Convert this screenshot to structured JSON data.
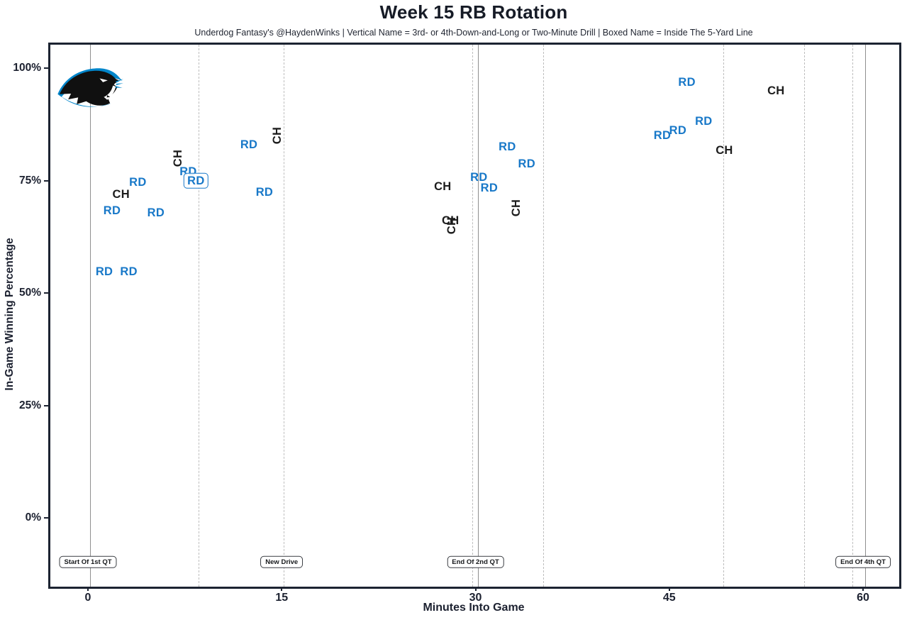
{
  "header": {
    "title": "Week 15 RB Rotation",
    "subtitle": "Underdog Fantasy's @HaydenWinks | Vertical Name = 3rd- or 4th-Down-and-Long or Two-Minute Drill | Boxed Name = Inside The 5-Yard Line"
  },
  "colors": {
    "rd_blue": "#1878c8",
    "ch_black": "#1c1c1c",
    "panther_blue": "#0085CA",
    "solid_quarter_line": "#8f8f8f",
    "dashed_drive_line": "#bdbdbd",
    "plot_border": "#1c2331"
  },
  "logo_name": "carolina-panthers-logo",
  "chart_data": {
    "type": "scatter",
    "title": "Week 15 RB Rotation",
    "subtitle": "Underdog Fantasy's @HaydenWinks | Vertical Name = 3rd- or 4th-Down-and-Long or Two-Minute Drill | Boxed Name = Inside The 5-Yard Line",
    "xlabel": "Minutes Into Game",
    "ylabel": "In-Game Winning Percentage",
    "x_ticks": [
      0,
      15,
      30,
      45,
      60
    ],
    "y_ticks": [
      0,
      25,
      50,
      75,
      100
    ],
    "y_tick_suffix": "%",
    "xlim": [
      -3.1,
      62.8
    ],
    "ylim": [
      -15.3,
      105.7
    ],
    "grid": "vertical-lines-only",
    "legend": "none",
    "marker_style": "text-initials",
    "annotation_rules": {
      "vertical_label": "3rd- or 4th-Down-and-Long or Two-Minute Drill",
      "boxed_label": "Inside The 5-Yard Line"
    },
    "quarter_lines": [
      {
        "min": 0,
        "label": "Start Of 1st QT"
      },
      {
        "min": 30,
        "label": "End Of 2nd QT"
      },
      {
        "min": 60,
        "label": "End Of 4th QT"
      }
    ],
    "new_drive_lines": {
      "label": "New Drive",
      "label_at_min": 15.0,
      "mins": [
        8.4,
        15.0,
        29.6,
        35.1,
        49.0,
        55.3,
        59.0
      ]
    },
    "points": [
      {
        "player": "RD",
        "min": 1.1,
        "pct": 55.2,
        "vertical": false,
        "boxed": false
      },
      {
        "player": "RD",
        "min": 3.0,
        "pct": 55.2,
        "vertical": false,
        "boxed": false
      },
      {
        "player": "RD",
        "min": 1.7,
        "pct": 68.8,
        "vertical": false,
        "boxed": false
      },
      {
        "player": "CH",
        "min": 2.4,
        "pct": 72.4,
        "vertical": false,
        "boxed": false
      },
      {
        "player": "RD",
        "min": 3.7,
        "pct": 75.1,
        "vertical": false,
        "boxed": false
      },
      {
        "player": "RD",
        "min": 5.1,
        "pct": 68.3,
        "vertical": false,
        "boxed": false
      },
      {
        "player": "CH",
        "min": 6.8,
        "pct": 80.4,
        "vertical": true,
        "boxed": false
      },
      {
        "player": "RD",
        "min": 7.6,
        "pct": 77.4,
        "vertical": false,
        "boxed": false
      },
      {
        "player": "RD",
        "min": 8.2,
        "pct": 75.4,
        "vertical": false,
        "boxed": true
      },
      {
        "player": "RD",
        "min": 12.3,
        "pct": 83.4,
        "vertical": false,
        "boxed": false
      },
      {
        "player": "CH",
        "min": 14.5,
        "pct": 85.5,
        "vertical": true,
        "boxed": false
      },
      {
        "player": "RD",
        "min": 13.5,
        "pct": 72.9,
        "vertical": false,
        "boxed": false
      },
      {
        "player": "CH",
        "min": 27.3,
        "pct": 74.1,
        "vertical": false,
        "boxed": false
      },
      {
        "player": "CH",
        "min": 27.9,
        "pct": 66.6,
        "vertical": false,
        "boxed": false
      },
      {
        "player": "CH",
        "min": 28.0,
        "pct": 65.5,
        "vertical": true,
        "boxed": false
      },
      {
        "player": "RD",
        "min": 30.1,
        "pct": 76.2,
        "vertical": false,
        "boxed": false
      },
      {
        "player": "RD",
        "min": 30.9,
        "pct": 73.8,
        "vertical": false,
        "boxed": false
      },
      {
        "player": "RD",
        "min": 32.3,
        "pct": 83.0,
        "vertical": false,
        "boxed": false
      },
      {
        "player": "RD",
        "min": 33.8,
        "pct": 79.2,
        "vertical": false,
        "boxed": false
      },
      {
        "player": "CH",
        "min": 33.0,
        "pct": 69.4,
        "vertical": true,
        "boxed": false
      },
      {
        "player": "RD",
        "min": 44.3,
        "pct": 85.5,
        "vertical": false,
        "boxed": false
      },
      {
        "player": "RD",
        "min": 45.5,
        "pct": 86.6,
        "vertical": false,
        "boxed": false
      },
      {
        "player": "RD",
        "min": 46.2,
        "pct": 97.3,
        "vertical": false,
        "boxed": false
      },
      {
        "player": "RD",
        "min": 47.5,
        "pct": 88.6,
        "vertical": false,
        "boxed": false
      },
      {
        "player": "CH",
        "min": 49.1,
        "pct": 82.2,
        "vertical": false,
        "boxed": false
      },
      {
        "player": "CH",
        "min": 53.1,
        "pct": 95.4,
        "vertical": false,
        "boxed": false
      }
    ]
  }
}
